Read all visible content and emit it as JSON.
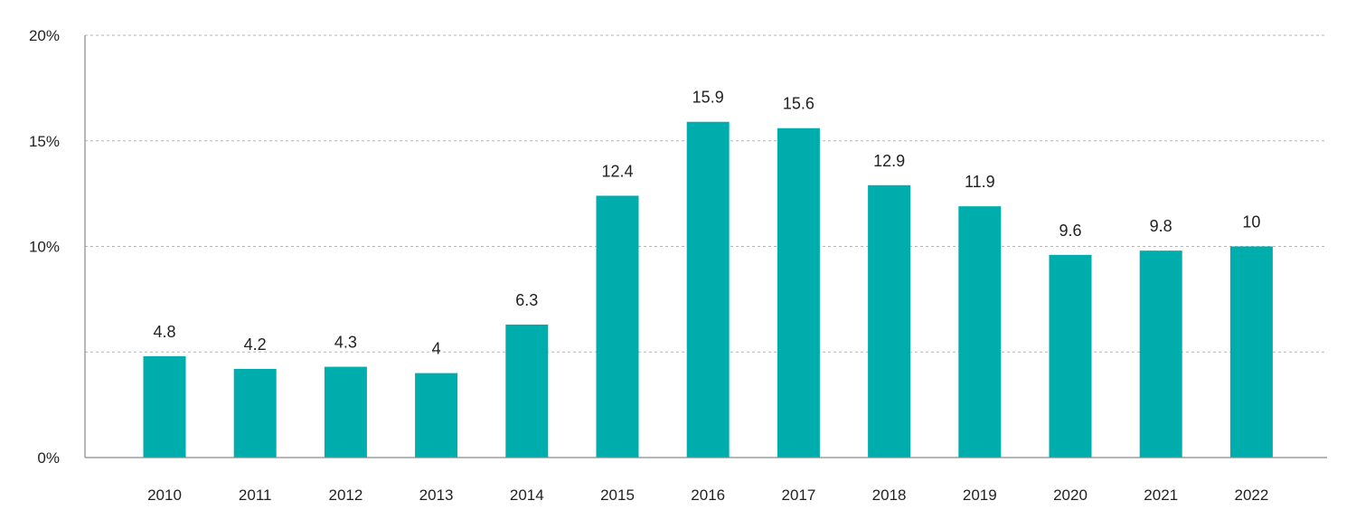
{
  "chart_data": {
    "type": "bar",
    "title": "",
    "xlabel": "",
    "ylabel": "",
    "categories": [
      "2010",
      "2011",
      "2012",
      "2013",
      "2014",
      "2015",
      "2016",
      "2017",
      "2018",
      "2019",
      "2020",
      "2021",
      "2022"
    ],
    "values": [
      4.8,
      4.2,
      4.3,
      4,
      6.3,
      12.4,
      15.9,
      15.6,
      12.9,
      11.9,
      9.6,
      9.8,
      10
    ],
    "value_labels": [
      "4.8",
      "4.2",
      "4.3",
      "4",
      "6.3",
      "12.4",
      "15.9",
      "15.6",
      "12.9",
      "11.9",
      "9.6",
      "9.8",
      "10"
    ],
    "ylim": [
      0,
      20
    ],
    "yticks": [
      0,
      5,
      10,
      15,
      20
    ],
    "ytick_labels": [
      "0%",
      "",
      "10%",
      "15%",
      "20%"
    ],
    "grid": true,
    "legend": "none",
    "bar_color": "#00adad"
  }
}
